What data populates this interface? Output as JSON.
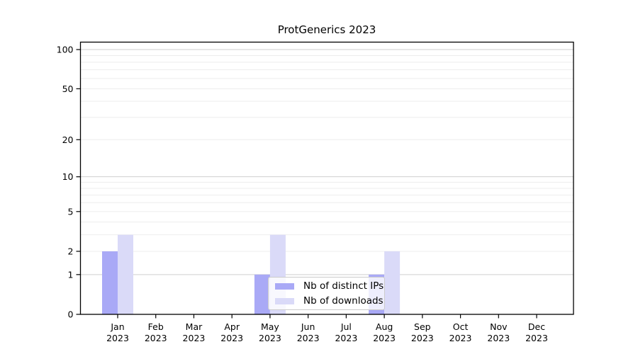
{
  "chart_data": {
    "type": "bar",
    "title": "ProtGenerics 2023",
    "categories": [
      "Jan",
      "Feb",
      "Mar",
      "Apr",
      "May",
      "Jun",
      "Jul",
      "Aug",
      "Sep",
      "Oct",
      "Nov",
      "Dec"
    ],
    "x_year_label": "2023",
    "series": [
      {
        "name": "Nb of distinct IPs",
        "color": "#a9a9f6",
        "values": [
          2,
          0,
          0,
          0,
          1,
          0,
          0,
          1,
          0,
          0,
          0,
          0
        ]
      },
      {
        "name": "Nb of downloads",
        "color": "#dadaf8",
        "values": [
          3,
          0,
          0,
          0,
          3,
          0,
          0,
          2,
          0,
          0,
          0,
          0
        ]
      }
    ],
    "yscale": "log1p",
    "yticks": [
      0,
      1,
      2,
      5,
      10,
      20,
      50,
      100
    ],
    "ylim": [
      0,
      115
    ],
    "xlabel": "",
    "ylabel": "",
    "grid": {
      "orientation": "horizontal",
      "minor_values": [
        2,
        3,
        4,
        5,
        6,
        7,
        8,
        9,
        20,
        30,
        40,
        50,
        60,
        70,
        80,
        90
      ],
      "major_values": [
        1,
        10,
        100
      ],
      "minor_color": "#ededed",
      "major_color": "#cfcfcf"
    },
    "axis_color": "#000000",
    "legend_position": "inside-bottom-center"
  }
}
